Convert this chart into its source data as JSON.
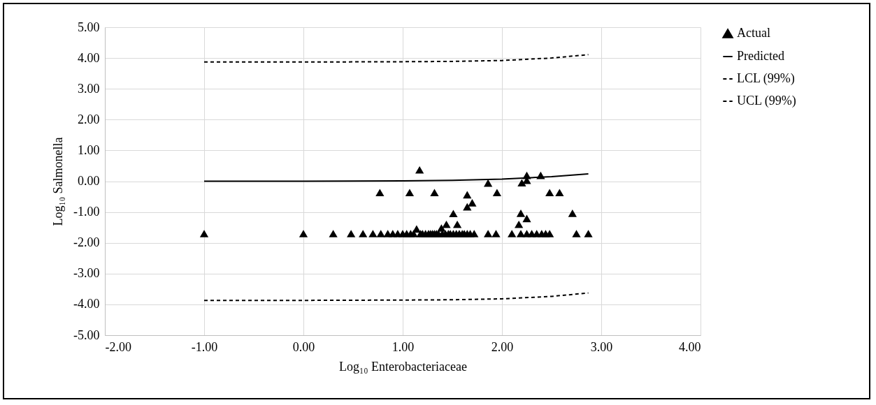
{
  "chart_data": {
    "type": "scatter",
    "xlabel": "Log₁₀ Enterobacteriaceae",
    "ylabel": "Log₁₀ Salmonella",
    "xlim": [
      -2,
      4
    ],
    "ylim": [
      -5,
      5
    ],
    "xticks": [
      {
        "value": -2,
        "label": "-2.00"
      },
      {
        "value": -1,
        "label": "-1.00"
      },
      {
        "value": 0,
        "label": "0.00"
      },
      {
        "value": 1,
        "label": "1.00"
      },
      {
        "value": 2,
        "label": "2.00"
      },
      {
        "value": 3,
        "label": "3.00"
      },
      {
        "value": 4,
        "label": "4.00"
      }
    ],
    "yticks": [
      {
        "value": -5,
        "label": "-5.00"
      },
      {
        "value": -4,
        "label": "-4.00"
      },
      {
        "value": -3,
        "label": "-3.00"
      },
      {
        "value": -2,
        "label": "-2.00"
      },
      {
        "value": -1,
        "label": "-1.00"
      },
      {
        "value": 0,
        "label": "0.00"
      },
      {
        "value": 1,
        "label": "1.00"
      },
      {
        "value": 2,
        "label": "2.00"
      },
      {
        "value": 3,
        "label": "3.00"
      },
      {
        "value": 4,
        "label": "4.00"
      },
      {
        "value": 5,
        "label": "5.00"
      }
    ],
    "grid": true,
    "legend": "right",
    "series": [
      {
        "name": "Actual",
        "type": "scatter",
        "marker": "triangle",
        "color": "#000000",
        "x": [
          -1.0,
          0.0,
          0.3,
          0.48,
          0.6,
          0.7,
          0.78,
          0.85,
          0.9,
          0.95,
          1.0,
          1.04,
          1.08,
          1.11,
          1.18,
          1.2,
          1.23,
          1.26,
          1.28,
          1.3,
          1.32,
          1.34,
          1.36,
          1.4,
          1.43,
          1.46,
          1.48,
          1.51,
          1.54,
          1.57,
          1.6,
          1.62,
          1.65,
          1.68,
          1.72,
          1.86,
          1.94,
          2.1,
          2.19,
          2.25,
          2.3,
          2.35,
          2.4,
          2.44,
          2.48,
          2.75,
          2.87,
          1.17,
          0.77,
          1.07,
          1.32,
          1.65,
          1.7,
          1.65,
          1.51,
          1.44,
          1.55,
          1.14,
          1.39,
          1.86,
          1.95,
          2.25,
          2.2,
          2.25,
          2.39,
          2.48,
          2.58,
          2.19,
          2.25,
          2.17,
          2.71
        ],
        "values": [
          -1.7,
          -1.7,
          -1.7,
          -1.7,
          -1.7,
          -1.7,
          -1.7,
          -1.7,
          -1.7,
          -1.7,
          -1.7,
          -1.7,
          -1.7,
          -1.7,
          -1.7,
          -1.7,
          -1.7,
          -1.7,
          -1.7,
          -1.7,
          -1.7,
          -1.7,
          -1.7,
          -1.7,
          -1.7,
          -1.7,
          -1.7,
          -1.7,
          -1.7,
          -1.7,
          -1.7,
          -1.7,
          -1.7,
          -1.7,
          -1.7,
          -1.7,
          -1.7,
          -1.7,
          -1.7,
          -1.7,
          -1.7,
          -1.7,
          -1.7,
          -1.7,
          -1.7,
          -1.7,
          -1.7,
          0.37,
          -0.37,
          -0.37,
          -0.37,
          -0.44,
          -0.7,
          -0.83,
          -1.05,
          -1.4,
          -1.4,
          -1.55,
          -1.52,
          -0.06,
          -0.37,
          0.19,
          -0.05,
          0.03,
          0.19,
          -0.37,
          -0.37,
          -1.04,
          -1.21,
          -1.4,
          -1.04
        ]
      },
      {
        "name": "Predicted",
        "type": "line",
        "line_style": "solid",
        "marker": "none",
        "color": "#000000",
        "x": [
          -1,
          0,
          1,
          1.5,
          2,
          2.5,
          2.87
        ],
        "values": [
          0,
          0,
          0.01,
          0.03,
          0.07,
          0.15,
          0.24
        ]
      },
      {
        "name": "LCL (99%)",
        "type": "line",
        "line_style": "dashed",
        "marker": "none",
        "color": "#000000",
        "x": [
          -1,
          0,
          1,
          1.5,
          2,
          2.5,
          2.87
        ],
        "values": [
          -3.87,
          -3.87,
          -3.86,
          -3.85,
          -3.82,
          -3.74,
          -3.63
        ]
      },
      {
        "name": "UCL (99%)",
        "type": "line",
        "line_style": "dashed",
        "marker": "none",
        "color": "#000000",
        "x": [
          -1,
          0,
          1,
          1.5,
          2,
          2.5,
          2.87
        ],
        "values": [
          3.87,
          3.87,
          3.88,
          3.89,
          3.92,
          4.0,
          4.11
        ]
      }
    ]
  }
}
